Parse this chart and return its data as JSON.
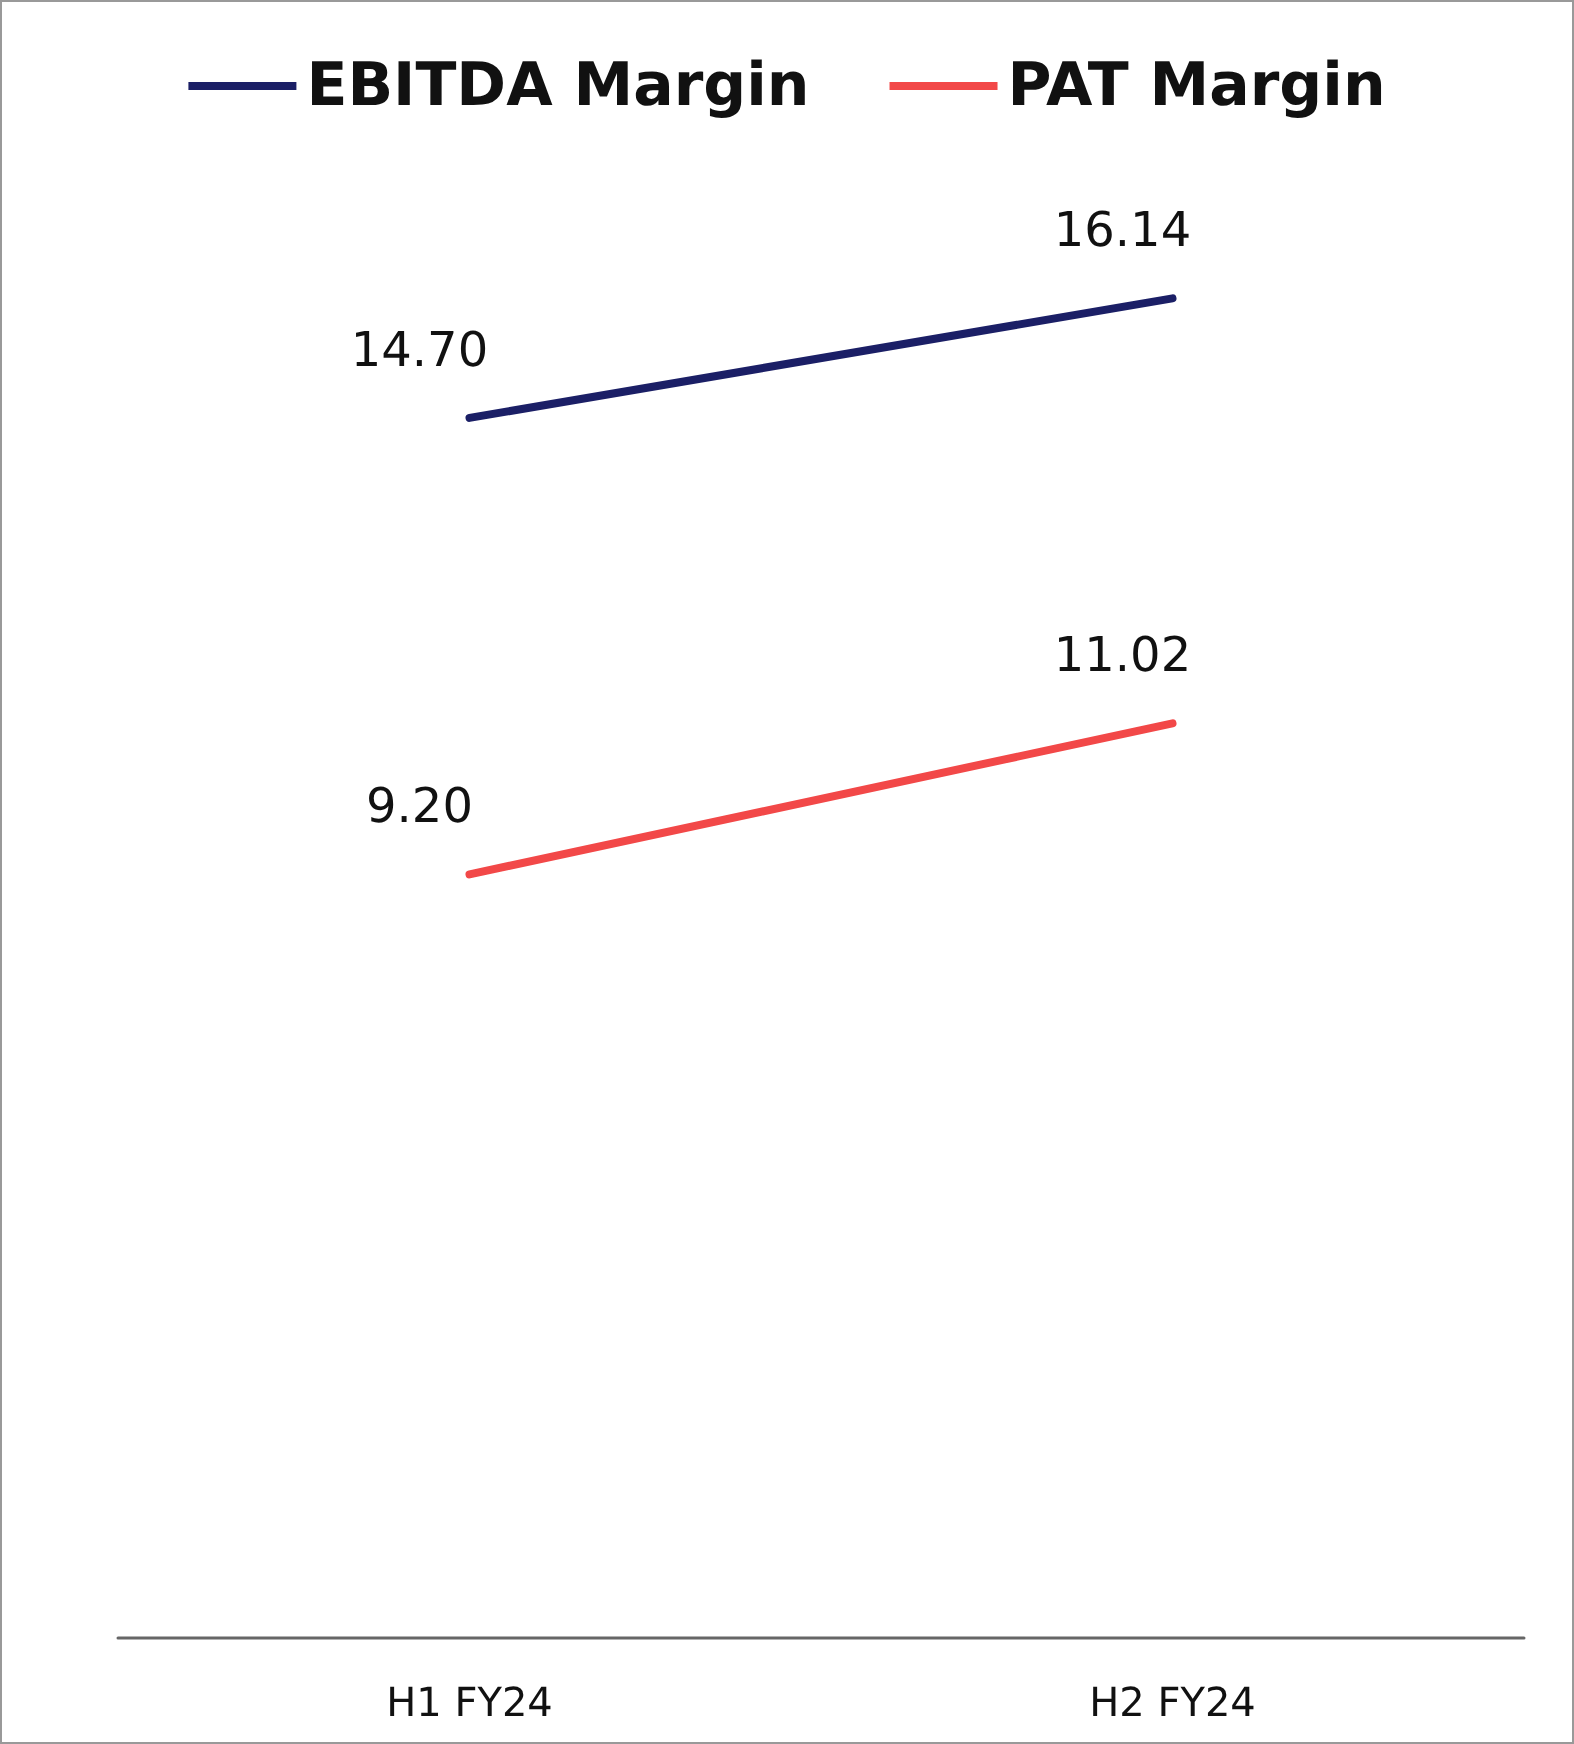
{
  "chart_data": {
    "type": "line",
    "categories": [
      "H1 FY24",
      "H2 FY24"
    ],
    "series": [
      {
        "name": "EBITDA Margin",
        "color": "#1b1f66",
        "values": [
          14.7,
          16.14
        ],
        "value_labels": [
          "14.70",
          "16.14"
        ]
      },
      {
        "name": "PAT Margin",
        "color": "#f24848",
        "values": [
          9.2,
          11.02
        ],
        "value_labels": [
          "9.20",
          "11.02"
        ]
      }
    ],
    "legend": "top",
    "grid": false,
    "tick_labels": "x",
    "marker": "none",
    "line_style": "solid"
  }
}
